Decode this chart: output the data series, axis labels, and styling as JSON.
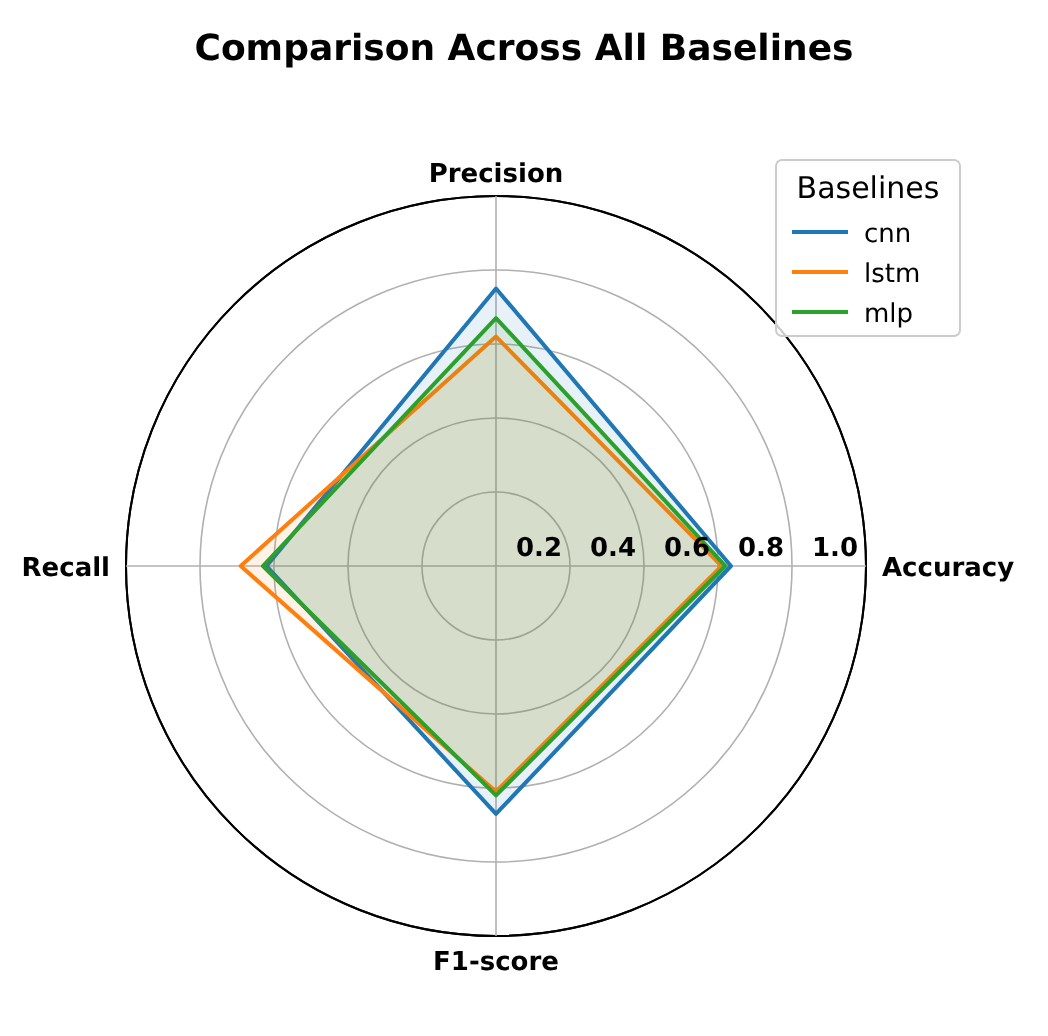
{
  "chart_data": {
    "type": "radar",
    "title": "Comparison Across All Baselines",
    "categories": [
      "Precision",
      "Accuracy",
      "F1-score",
      "Recall"
    ],
    "ylim": [
      0,
      1
    ],
    "yticks": [
      0.2,
      0.4,
      0.6,
      0.8,
      {
        "value": 1,
        "label": "1.0"
      }
    ],
    "grid": true,
    "legend": "top right",
    "legend_title": "Baselines",
    "series": [
      {
        "name": "cnn",
        "color": "#1f77b4",
        "values": [
          0.75,
          0.635,
          0.67,
          0.62
        ]
      },
      {
        "name": "lstm",
        "color": "#ff7f0e",
        "values": [
          0.62,
          0.61,
          0.61,
          0.69
        ]
      },
      {
        "name": "mlp",
        "color": "#2ca02c",
        "values": [
          0.67,
          0.62,
          0.62,
          0.63
        ]
      }
    ]
  }
}
